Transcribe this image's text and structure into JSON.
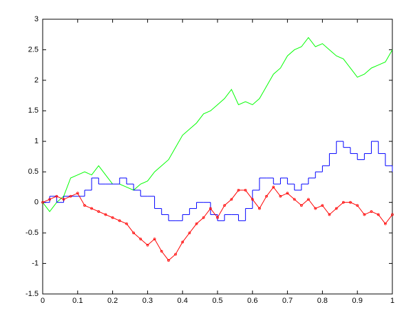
{
  "chart_data": {
    "type": "line",
    "x": [
      0,
      0.02,
      0.04,
      0.06,
      0.08,
      0.1,
      0.12,
      0.14,
      0.16,
      0.18,
      0.2,
      0.22,
      0.24,
      0.26,
      0.28,
      0.3,
      0.32,
      0.34,
      0.36,
      0.38,
      0.4,
      0.42,
      0.44,
      0.46,
      0.48,
      0.5,
      0.52,
      0.54,
      0.56,
      0.58,
      0.6,
      0.62,
      0.64,
      0.66,
      0.68,
      0.7,
      0.72,
      0.74,
      0.76,
      0.78,
      0.8,
      0.82,
      0.84,
      0.86,
      0.88,
      0.9,
      0.92,
      0.94,
      0.96,
      0.98,
      1
    ],
    "series": [
      {
        "color": "#00ff00",
        "values": [
          0,
          -0.15,
          0,
          0.1,
          0.4,
          0.45,
          0.5,
          0.45,
          0.6,
          0.45,
          0.3,
          0.3,
          0.25,
          0.2,
          0.3,
          0.35,
          0.5,
          0.6,
          0.7,
          0.9,
          1.1,
          1.2,
          1.3,
          1.45,
          1.5,
          1.6,
          1.7,
          1.85,
          1.6,
          1.65,
          1.6,
          1.7,
          1.9,
          2.1,
          2.2,
          2.4,
          2.5,
          2.55,
          2.7,
          2.55,
          2.6,
          2.5,
          2.4,
          2.35,
          2.2,
          2.05,
          2.1,
          2.2,
          2.25,
          2.3,
          2.5
        ]
      },
      {
        "color": "#0000ff",
        "step": true,
        "values": [
          0,
          0.1,
          0,
          0.1,
          0.1,
          0.1,
          0.2,
          0.4,
          0.3,
          0.3,
          0.3,
          0.4,
          0.3,
          0.2,
          0.1,
          0.1,
          -0.1,
          -0.2,
          -0.3,
          -0.3,
          -0.2,
          -0.1,
          0,
          0,
          -0.2,
          -0.3,
          -0.2,
          -0.2,
          -0.3,
          -0.1,
          0.2,
          0.4,
          0.4,
          0.3,
          0.4,
          0.3,
          0.2,
          0.3,
          0.4,
          0.5,
          0.6,
          0.8,
          1.0,
          0.9,
          0.8,
          0.7,
          0.8,
          1.0,
          0.8,
          0.6,
          0.5
        ]
      },
      {
        "color": "#ff0000",
        "marker": true,
        "values": [
          0,
          0.05,
          0.1,
          0.05,
          0.1,
          0.15,
          -0.05,
          -0.1,
          -0.15,
          -0.2,
          -0.25,
          -0.3,
          -0.35,
          -0.5,
          -0.6,
          -0.7,
          -0.6,
          -0.8,
          -0.95,
          -0.85,
          -0.65,
          -0.5,
          -0.35,
          -0.25,
          -0.1,
          -0.25,
          -0.05,
          0.05,
          0.2,
          0.2,
          0.05,
          -0.1,
          0.1,
          0.25,
          0.1,
          0.15,
          0.05,
          -0.05,
          0.05,
          -0.1,
          -0.05,
          -0.2,
          -0.1,
          0,
          0,
          -0.05,
          -0.2,
          -0.15,
          -0.2,
          -0.35,
          -0.2
        ]
      }
    ],
    "xlim": [
      0,
      1
    ],
    "xticks": [
      0,
      0.1,
      0.2,
      0.3,
      0.4,
      0.5,
      0.6,
      0.7,
      0.8,
      0.9,
      1
    ],
    "ylim": [
      -1.5,
      3
    ],
    "yticks": [
      -1.5,
      -1,
      -0.5,
      0,
      0.5,
      1,
      1.5,
      2,
      2.5,
      3
    ]
  }
}
